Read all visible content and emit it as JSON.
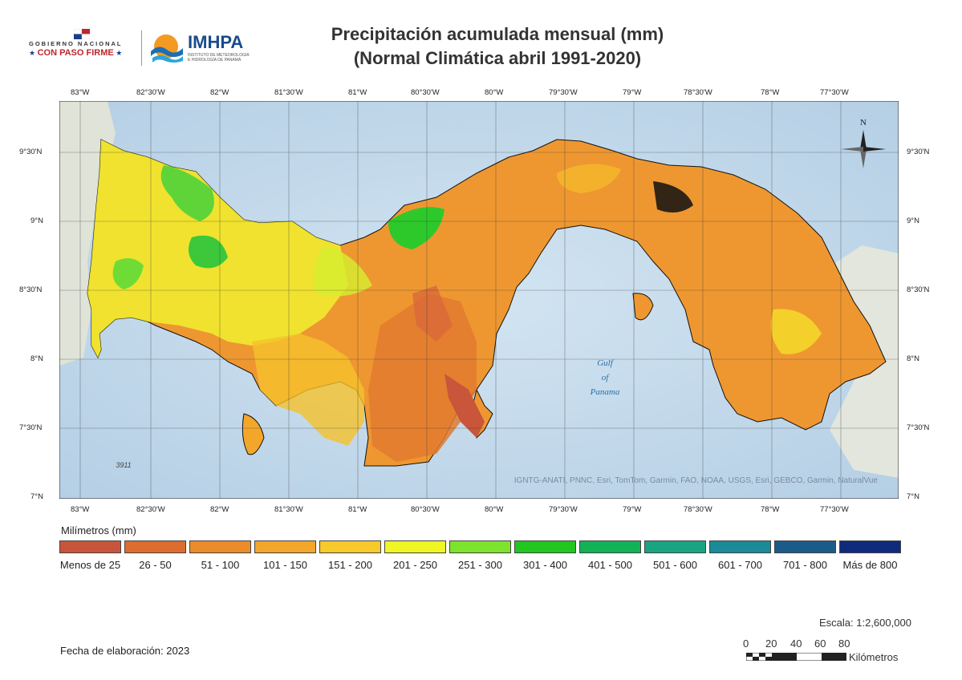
{
  "header": {
    "gov_line1": "GOBIERNO NACIONAL",
    "gov_line2": "CON PASO FIRME",
    "imhpa_name": "IMHPA",
    "imhpa_sub": "INSTITUTO DE METEOROLOGÍA E HIDROLOGÍA DE PANAMÁ",
    "title_line1": "Precipitación acumulada mensual (mm)",
    "title_line2": "(Normal Climática abril 1991-2020)"
  },
  "map": {
    "lon_labels": [
      "83°W",
      "82°30'W",
      "82°W",
      "81°30'W",
      "81°W",
      "80°30'W",
      "80°W",
      "79°30'W",
      "79°W",
      "78°30'W",
      "78°W",
      "77°30'W"
    ],
    "lat_labels": [
      "9°30'N",
      "9°N",
      "8°30'N",
      "8°N",
      "7°30'N",
      "7°N"
    ],
    "gulf_label": [
      "Gulf",
      "of",
      "Panama"
    ],
    "depth_label": "3911",
    "north_label": "N",
    "attribution": "IGNTG-ANATI, PNNC, Esri, TomTom, Garmin, FAO, NOAA, USGS, Esri, GEBCO, Garmin, NaturalVue"
  },
  "legend": {
    "title": "Milímetros (mm)",
    "items": [
      {
        "label": "Menos de 25",
        "color": "#c8553b"
      },
      {
        "label": "26 - 50",
        "color": "#dd6d2e"
      },
      {
        "label": "51 - 100",
        "color": "#eb8b2a"
      },
      {
        "label": "101 - 150",
        "color": "#f2a62a"
      },
      {
        "label": "151 - 200",
        "color": "#f7c92a"
      },
      {
        "label": "201 - 250",
        "color": "#f0f524"
      },
      {
        "label": "251 - 300",
        "color": "#7ee32c"
      },
      {
        "label": "301 - 400",
        "color": "#21c61f"
      },
      {
        "label": "401 - 500",
        "color": "#12b256"
      },
      {
        "label": "501 - 600",
        "color": "#19a482"
      },
      {
        "label": "601 - 700",
        "color": "#1a8b98"
      },
      {
        "label": "701 - 800",
        "color": "#1b5b89"
      },
      {
        "label": "Más de 800",
        "color": "#102b7c"
      }
    ]
  },
  "footer": {
    "scale": "Escala: 1:2,600,000",
    "fecha": "Fecha de elaboración: 2023",
    "scale_ticks": [
      "0",
      "20",
      "40",
      "60",
      "80"
    ],
    "km_label": "Kilómetros"
  }
}
